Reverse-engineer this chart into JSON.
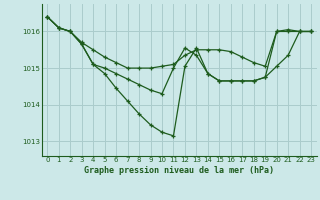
{
  "title": "Graphe pression niveau de la mer (hPa)",
  "background_color": "#cce8e8",
  "grid_color": "#aacccc",
  "line_color": "#1e5c1e",
  "x_ticks": [
    0,
    1,
    2,
    3,
    4,
    5,
    6,
    7,
    8,
    9,
    10,
    11,
    12,
    13,
    14,
    15,
    16,
    17,
    18,
    19,
    20,
    21,
    22,
    23
  ],
  "y_ticks": [
    1013,
    1014,
    1015,
    1016
  ],
  "ylim": [
    1012.6,
    1016.75
  ],
  "xlim": [
    -0.5,
    23.5
  ],
  "series": [
    {
      "x": [
        0,
        1,
        2,
        3,
        4,
        5,
        6,
        7,
        8,
        9,
        10,
        11,
        12,
        13,
        14,
        15,
        16,
        17,
        18,
        19,
        20,
        21,
        22,
        23
      ],
      "y": [
        1016.4,
        1016.1,
        1016.0,
        1015.7,
        1015.5,
        1015.3,
        1015.15,
        1015.0,
        1015.0,
        1015.0,
        1015.05,
        1015.1,
        1015.35,
        1015.5,
        1015.5,
        1015.5,
        1015.45,
        1015.3,
        1015.15,
        1015.05,
        1016.0,
        1016.05,
        1016.0,
        1016.0
      ]
    },
    {
      "x": [
        0,
        1,
        2,
        3,
        4,
        5,
        6,
        7,
        8,
        9,
        10,
        11,
        12,
        13,
        14,
        15,
        16,
        17,
        18,
        19,
        20,
        21,
        22,
        23
      ],
      "y": [
        1016.4,
        1016.1,
        1016.0,
        1015.65,
        1015.1,
        1015.0,
        1014.85,
        1014.7,
        1014.55,
        1014.4,
        1014.3,
        1015.0,
        1015.55,
        1015.35,
        1014.85,
        1014.65,
        1014.65,
        1014.65,
        1014.65,
        1014.75,
        1015.05,
        1015.35,
        1016.0,
        1016.0
      ]
    },
    {
      "x": [
        0,
        1,
        2,
        3,
        4,
        5,
        6,
        7,
        8,
        9,
        10,
        11,
        12,
        13,
        14,
        15,
        16,
        17,
        18,
        19,
        20,
        21,
        22,
        23
      ],
      "y": [
        1016.4,
        1016.1,
        1016.0,
        1015.65,
        1015.1,
        1014.85,
        1014.45,
        1014.1,
        1013.75,
        1013.45,
        1013.25,
        1013.15,
        1015.05,
        1015.55,
        1014.85,
        1014.65,
        1014.65,
        1014.65,
        1014.65,
        1014.75,
        1016.0,
        1016.0,
        1016.0,
        1016.0
      ]
    }
  ]
}
